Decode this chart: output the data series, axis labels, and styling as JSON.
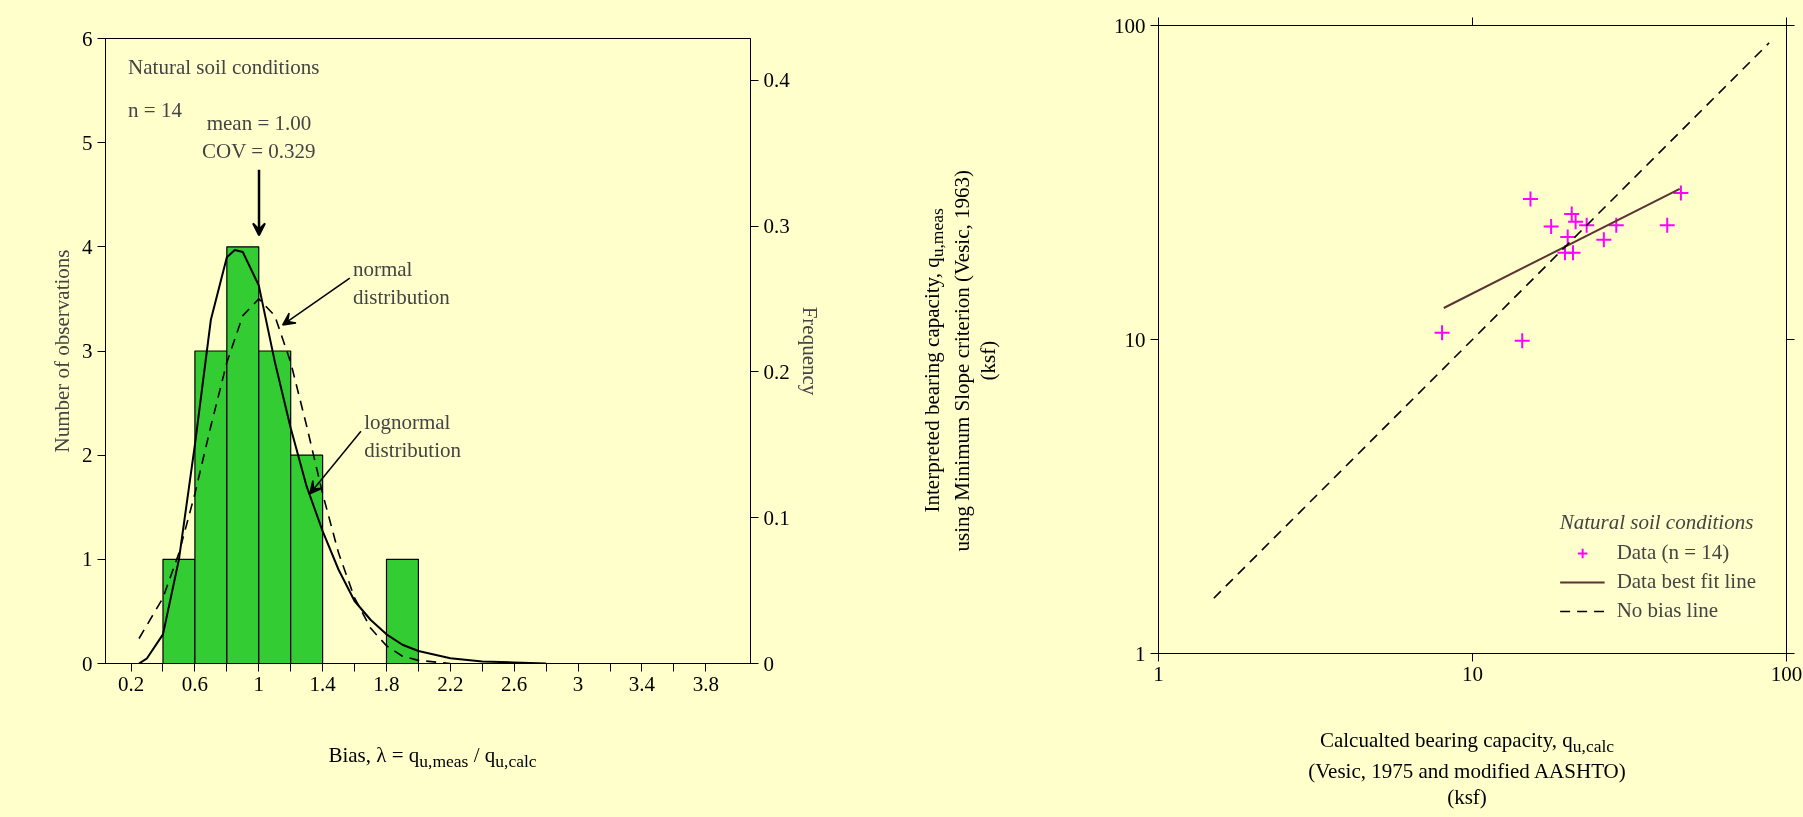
{
  "chart_data": [
    {
      "type": "histogram",
      "bins": [
        0.4,
        0.6,
        0.8,
        1.0,
        1.2,
        1.4,
        1.6,
        1.8,
        2.0
      ],
      "values": [
        1,
        3,
        4,
        3,
        2,
        0,
        0,
        1
      ],
      "color": "#33cc33",
      "xlabel": "Bias, λ = q$_{u,meas}$ / q$_{u,calc}$",
      "ylabel": "Number of observations",
      "y2label": "Frequency",
      "xlim": [
        0.04,
        4.08
      ],
      "ylim": [
        0,
        6
      ],
      "y2lim": [
        0,
        0.4286
      ],
      "xticks": [
        0.2,
        {
          "value": 0.4,
          "label": null
        },
        0.6,
        {
          "value": 0.8,
          "label": null
        },
        1,
        {
          "value": 1.2,
          "label": null
        },
        1.4,
        {
          "value": 1.6,
          "label": null
        },
        1.8,
        {
          "value": 2.0,
          "label": null
        },
        2.2,
        {
          "value": 2.4,
          "label": null
        },
        2.6,
        {
          "value": 2.8,
          "label": null
        },
        3,
        {
          "value": 3.2,
          "label": null
        },
        3.4,
        {
          "value": 3.6,
          "label": null
        },
        3.8
      ],
      "yticks": [
        0,
        1,
        2,
        3,
        4,
        5,
        6
      ],
      "y2ticks": [
        0,
        0.1,
        0.2,
        0.3,
        0.4
      ],
      "grid": false,
      "series": [
        {
          "type": "line",
          "color": "#000000",
          "line_style": "dashed",
          "x": [
            0.25,
            0.4,
            0.5,
            0.6,
            0.7,
            0.8,
            0.9,
            1.0,
            1.1,
            1.2,
            1.3,
            1.4,
            1.5,
            1.6,
            1.7,
            1.8,
            1.9,
            2.0,
            2.2
          ],
          "values": [
            0.24,
            0.63,
            1.06,
            1.63,
            2.28,
            2.89,
            3.34,
            3.5,
            3.34,
            2.89,
            2.28,
            1.63,
            1.06,
            0.63,
            0.34,
            0.17,
            0.07,
            0.03,
            0
          ]
        },
        {
          "type": "line",
          "color": "#000000",
          "line_style": "solid",
          "x": [
            0.25,
            0.3,
            0.4,
            0.5,
            0.6,
            0.7,
            0.8,
            0.85,
            0.9,
            1.0,
            1.1,
            1.2,
            1.3,
            1.4,
            1.5,
            1.6,
            1.7,
            1.8,
            1.9,
            2.0,
            2.2,
            2.4,
            2.6,
            2.8
          ],
          "values": [
            0,
            0.05,
            0.28,
            1.0,
            2.1,
            3.3,
            3.9,
            3.97,
            3.95,
            3.63,
            2.9,
            2.26,
            1.7,
            1.27,
            0.9,
            0.6,
            0.42,
            0.28,
            0.18,
            0.12,
            0.05,
            0.02,
            0.01,
            0
          ]
        }
      ],
      "annotations": [
        "Natural soil conditions",
        "n = 14",
        "mean = 1.00\nCOV = 0.329",
        {
          "text": "normal\ndistribution",
          "x": 1.15,
          "y": 3.25
        },
        {
          "text": "lognormal\ndistribution",
          "x": 1.32,
          "y": 1.63
        }
      ]
    },
    {
      "type": "scatter",
      "log": "xy",
      "xlim": [
        1,
        100
      ],
      "ylim": [
        1,
        100
      ],
      "xticks": [
        1,
        10,
        100
      ],
      "yticks": [
        1,
        10,
        100
      ],
      "grid": false,
      "xlabel": "Calcualted bearing capacity, q$_{u,calc}$\n(Vesic, 1975 and modified AASHTO)\n(ksf)",
      "ylabel": "Interpreted bearing capacity, q$_{u,meas}$\nusing Minimum Slope criterion (Vesic, 1963)\n(ksf)",
      "legend": "bottom right",
      "legend_title": "Natural soil conditions",
      "series": [
        {
          "name": "Data (n = 14)",
          "type": "scatter",
          "marker": "cross",
          "color": "#ff00ff",
          "x": [
            15.3,
            20.7,
            21.3,
            17.8,
            23.1,
            28.7,
            41.7,
            46.1,
            20.1,
            26.2,
            19.7,
            20.9,
            8.0,
            14.4
          ],
          "values": [
            28.0,
            25.1,
            23.7,
            22.9,
            23.1,
            23.1,
            23.1,
            29.3,
            21.2,
            20.8,
            18.9,
            18.9,
            10.5,
            9.9
          ]
        },
        {
          "name": "Data best fit line",
          "type": "line",
          "color": "#5c3333",
          "x": [
            8.1,
            45.7
          ],
          "values": [
            12.6,
            30.2
          ]
        },
        {
          "name": "No bias line",
          "type": "line",
          "color": "#000000",
          "line_style": "dashed",
          "x": [
            1.5,
            88
          ],
          "values": [
            1.5,
            88
          ]
        }
      ]
    }
  ]
}
